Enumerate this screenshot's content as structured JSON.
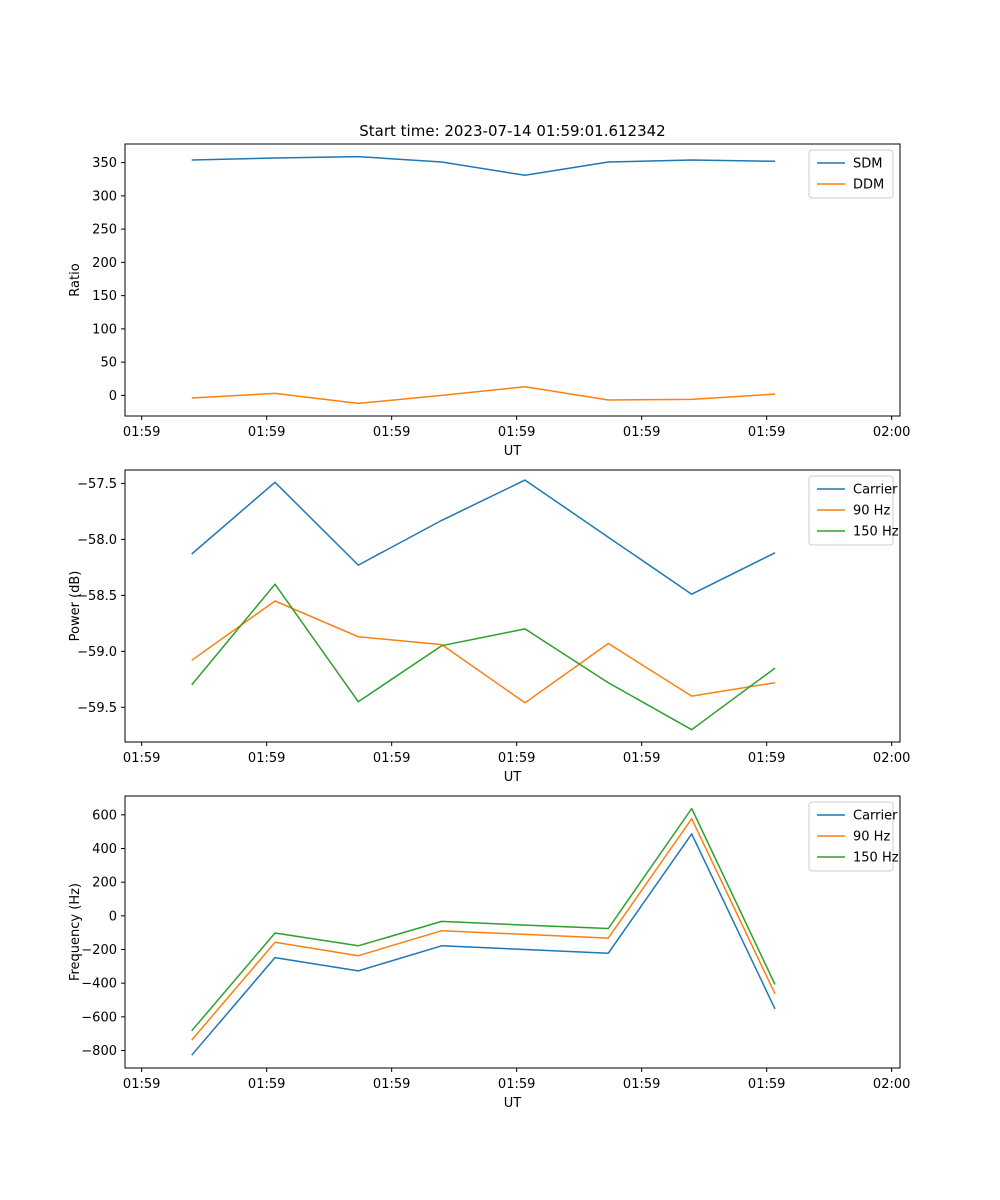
{
  "figure_title": "Start time: 2023-07-14 01:59:01.612342",
  "colors": {
    "blue": "#1f77b4",
    "orange": "#ff7f0e",
    "green": "#2ca02c"
  },
  "chart_data": [
    {
      "type": "line",
      "name": "ratio-chart",
      "title": "Start time: 2023-07-14 01:59:01.612342",
      "xlabel": "UT",
      "ylabel": "Ratio",
      "x": [
        1,
        2,
        3,
        4,
        5,
        6,
        7,
        8
      ],
      "xlim": [
        0.2,
        9.5
      ],
      "xticks": [
        0.4,
        1.9,
        3.4,
        4.9,
        6.4,
        7.9,
        9.4
      ],
      "xtick_labels": [
        "01:59",
        "01:59",
        "01:59",
        "01:59",
        "01:59",
        "01:59",
        "02:00"
      ],
      "ylim": [
        -31,
        378
      ],
      "yticks": [
        0,
        50,
        100,
        150,
        200,
        250,
        300,
        350
      ],
      "ytick_labels": [
        "0",
        "50",
        "100",
        "150",
        "200",
        "250",
        "300",
        "350"
      ],
      "legend_position": "top-right",
      "series": [
        {
          "name": "SDM",
          "color": "#1f77b4",
          "values": [
            354,
            357,
            359,
            351,
            331,
            351,
            354,
            352
          ]
        },
        {
          "name": "DDM",
          "color": "#ff7f0e",
          "values": [
            -4,
            3,
            -12,
            0,
            13,
            -7,
            -6,
            2
          ]
        }
      ]
    },
    {
      "type": "line",
      "name": "power-chart",
      "title": "",
      "xlabel": "UT",
      "ylabel": "Power (dB)",
      "x": [
        1,
        2,
        3,
        4,
        5,
        6,
        7,
        8
      ],
      "xlim": [
        0.2,
        9.5
      ],
      "xticks": [
        0.4,
        1.9,
        3.4,
        4.9,
        6.4,
        7.9,
        9.4
      ],
      "xtick_labels": [
        "01:59",
        "01:59",
        "01:59",
        "01:59",
        "01:59",
        "01:59",
        "02:00"
      ],
      "ylim": [
        -59.81,
        -57.38
      ],
      "yticks": [
        -59.5,
        -59.0,
        -58.5,
        -58.0,
        -57.5
      ],
      "ytick_labels": [
        "−59.5",
        "−59.0",
        "−58.5",
        "−58.0",
        "−57.5"
      ],
      "legend_position": "top-right",
      "series": [
        {
          "name": "Carrier",
          "color": "#1f77b4",
          "values": [
            -58.13,
            -57.49,
            -58.23,
            -57.83,
            -57.47,
            -57.98,
            -58.49,
            -58.12
          ]
        },
        {
          "name": "90 Hz",
          "color": "#ff7f0e",
          "values": [
            -59.08,
            -58.55,
            -58.87,
            -58.94,
            -59.46,
            -58.93,
            -59.4,
            -59.28
          ]
        },
        {
          "name": "150 Hz",
          "color": "#2ca02c",
          "values": [
            -59.3,
            -58.4,
            -59.45,
            -58.95,
            -58.8,
            -59.28,
            -59.7,
            -59.15
          ]
        }
      ]
    },
    {
      "type": "line",
      "name": "frequency-chart",
      "title": "",
      "xlabel": "UT",
      "ylabel": "Frequency (Hz)",
      "x": [
        1,
        2,
        3,
        4,
        5,
        6,
        7,
        8
      ],
      "xlim": [
        0.2,
        9.5
      ],
      "xticks": [
        0.4,
        1.9,
        3.4,
        4.9,
        6.4,
        7.9,
        9.4
      ],
      "xtick_labels": [
        "01:59",
        "01:59",
        "01:59",
        "01:59",
        "01:59",
        "01:59",
        "02:00"
      ],
      "ylim": [
        -904,
        712
      ],
      "yticks": [
        -800,
        -600,
        -400,
        -200,
        0,
        200,
        400,
        600
      ],
      "ytick_labels": [
        "−800",
        "−600",
        "−400",
        "−200",
        "0",
        "200",
        "400",
        "600"
      ],
      "legend_position": "top-right",
      "series": [
        {
          "name": "Carrier",
          "color": "#1f77b4",
          "values": [
            -828,
            -248,
            -327,
            -178,
            -200,
            -222,
            487,
            -553
          ]
        },
        {
          "name": "90 Hz",
          "color": "#ff7f0e",
          "values": [
            -738,
            -157,
            -237,
            -88,
            -110,
            -132,
            577,
            -463
          ]
        },
        {
          "name": "150 Hz",
          "color": "#2ca02c",
          "values": [
            -683,
            -102,
            -178,
            -33,
            -55,
            -75,
            638,
            -408
          ]
        }
      ]
    }
  ]
}
